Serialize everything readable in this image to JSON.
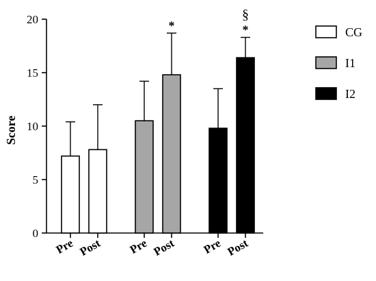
{
  "chart_data": {
    "type": "bar",
    "title": "",
    "xlabel": "",
    "ylabel": "Score",
    "ylim": [
      0,
      20
    ],
    "yticks": [
      0,
      5,
      10,
      15,
      20
    ],
    "grid": false,
    "legend_position": "right",
    "groups": [
      {
        "name": "CG",
        "color": "#ffffff",
        "bars": [
          {
            "category": "Pre",
            "value": 7.2,
            "error": 3.2,
            "annotation": []
          },
          {
            "category": "Post",
            "value": 7.8,
            "error": 4.2,
            "annotation": []
          }
        ]
      },
      {
        "name": "I1",
        "color": "#a6a6a6",
        "bars": [
          {
            "category": "Pre",
            "value": 10.5,
            "error": 3.7,
            "annotation": []
          },
          {
            "category": "Post",
            "value": 14.8,
            "error": 3.9,
            "annotation": [
              "*"
            ]
          }
        ]
      },
      {
        "name": "I2",
        "color": "#000000",
        "bars": [
          {
            "category": "Pre",
            "value": 9.8,
            "error": 3.7,
            "annotation": []
          },
          {
            "category": "Post",
            "value": 16.4,
            "error": 1.9,
            "annotation": [
              "*",
              "§"
            ]
          }
        ]
      }
    ],
    "legend": [
      {
        "label": "CG",
        "color": "#ffffff"
      },
      {
        "label": "I1",
        "color": "#a6a6a6"
      },
      {
        "label": "I2",
        "color": "#000000"
      }
    ]
  }
}
